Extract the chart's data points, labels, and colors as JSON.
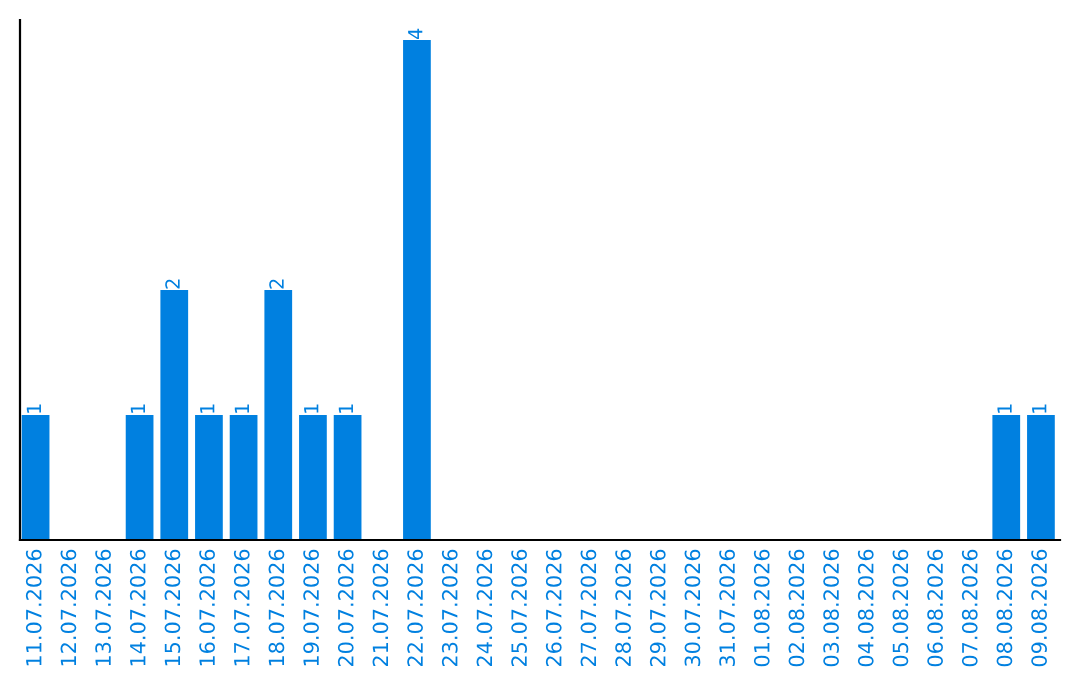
{
  "chart_data": {
    "type": "bar",
    "categories": [
      "11.07.2026",
      "12.07.2026",
      "13.07.2026",
      "14.07.2026",
      "15.07.2026",
      "16.07.2026",
      "17.07.2026",
      "18.07.2026",
      "19.07.2026",
      "20.07.2026",
      "21.07.2026",
      "22.07.2026",
      "23.07.2026",
      "24.07.2026",
      "25.07.2026",
      "26.07.2026",
      "27.07.2026",
      "28.07.2026",
      "29.07.2026",
      "30.07.2026",
      "31.07.2026",
      "01.08.2026",
      "02.08.2026",
      "03.08.2026",
      "04.08.2026",
      "05.08.2026",
      "06.08.2026",
      "07.08.2026",
      "08.08.2026",
      "09.08.2026"
    ],
    "values": [
      1,
      0,
      0,
      1,
      2,
      1,
      1,
      2,
      1,
      1,
      0,
      4,
      0,
      0,
      0,
      0,
      0,
      0,
      0,
      0,
      0,
      0,
      0,
      0,
      0,
      0,
      0,
      0,
      1,
      1
    ],
    "value_labels": [
      "1",
      null,
      null,
      "1",
      "2",
      "1",
      "1",
      "2",
      "1",
      "1",
      null,
      "4",
      null,
      null,
      null,
      null,
      null,
      null,
      null,
      null,
      null,
      null,
      null,
      null,
      null,
      null,
      null,
      null,
      "1",
      "1"
    ],
    "color": "#0080e0",
    "grid": false,
    "legend": false
  }
}
